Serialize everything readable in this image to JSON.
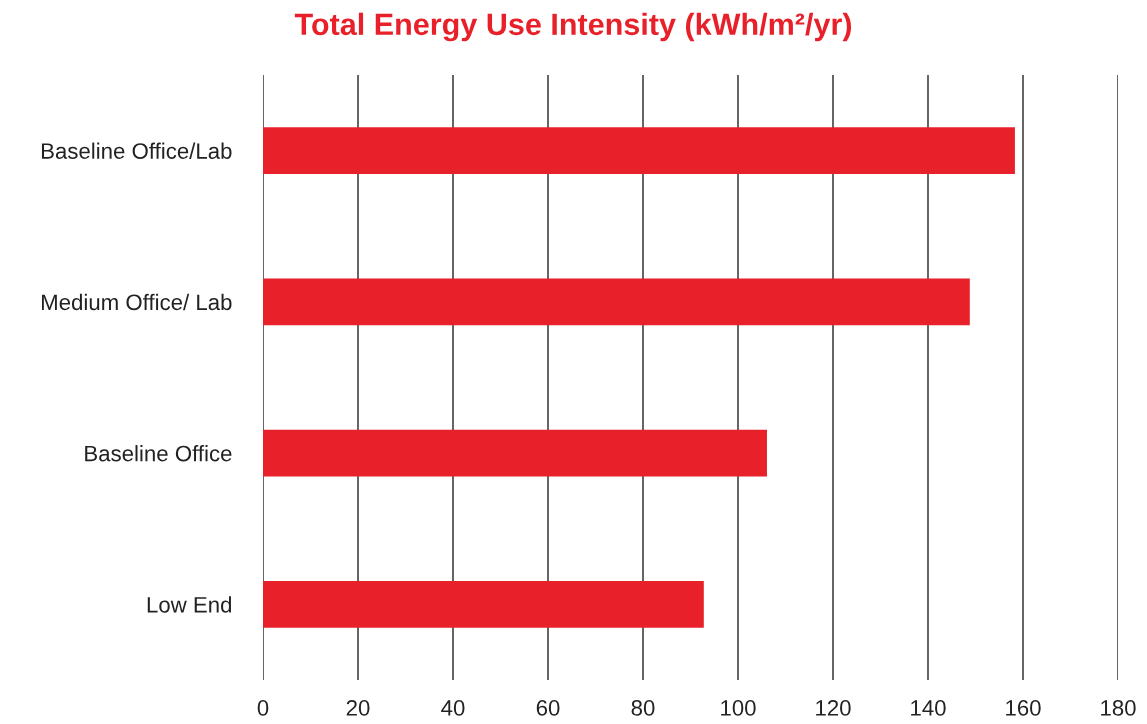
{
  "chart_data": {
    "type": "bar",
    "orientation": "horizontal",
    "title": "Total Energy Use Intensity (kWh/m²/yr)",
    "categories": [
      "Baseline Office/Lab",
      "Medium Office/ Lab",
      "Baseline Office",
      "Low End"
    ],
    "values": [
      158.3,
      148.8,
      106.1,
      92.8
    ],
    "color": "#e8202a",
    "xlim": [
      0,
      180
    ],
    "xticks": [
      0,
      20,
      40,
      60,
      80,
      100,
      120,
      140,
      160,
      180
    ],
    "grid": "x"
  }
}
